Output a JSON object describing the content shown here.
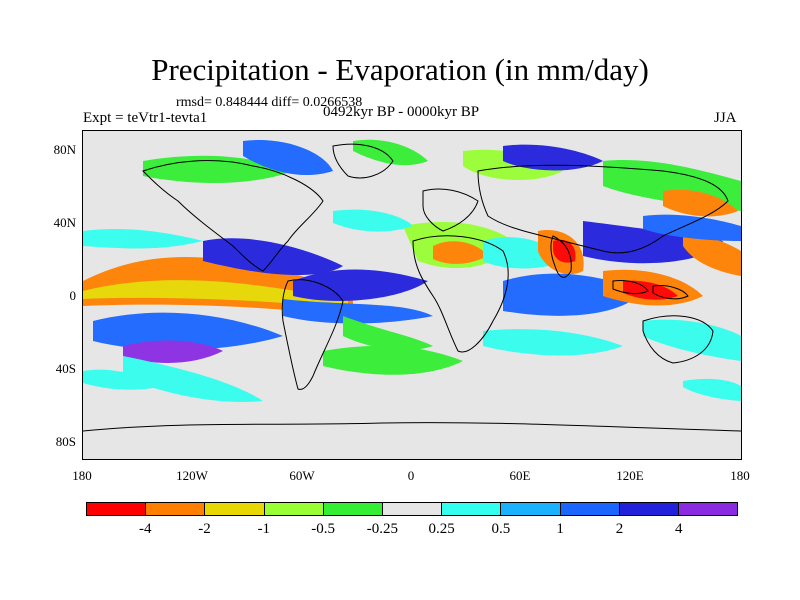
{
  "title": "Precipitation - Evaporation (in mm/day)",
  "stats": "rmsd= 0.848444  diff= 0.0266538",
  "left_label": "Expt = teVtr1-tevta1",
  "center_label": "0492kyr BP - 0000kyr BP",
  "right_label": "JJA",
  "map": {
    "y_ticks": [
      "80N",
      "40N",
      "0",
      "40S",
      "80S"
    ],
    "x_ticks": [
      "180",
      "120W",
      "60W",
      "0",
      "60E",
      "120E",
      "180"
    ]
  },
  "colorbar": {
    "colors": [
      "#ff0000",
      "#ff8000",
      "#e6d800",
      "#99ff33",
      "#33ee33",
      "#e6e6e6",
      "#33ffee",
      "#1ab2ff",
      "#1a66ff",
      "#2222dd",
      "#8a2be2"
    ],
    "labels": [
      "-4",
      "-2",
      "-1",
      "-0.5",
      "-0.25",
      "0.25",
      "0.5",
      "1",
      "2",
      "4"
    ]
  }
}
